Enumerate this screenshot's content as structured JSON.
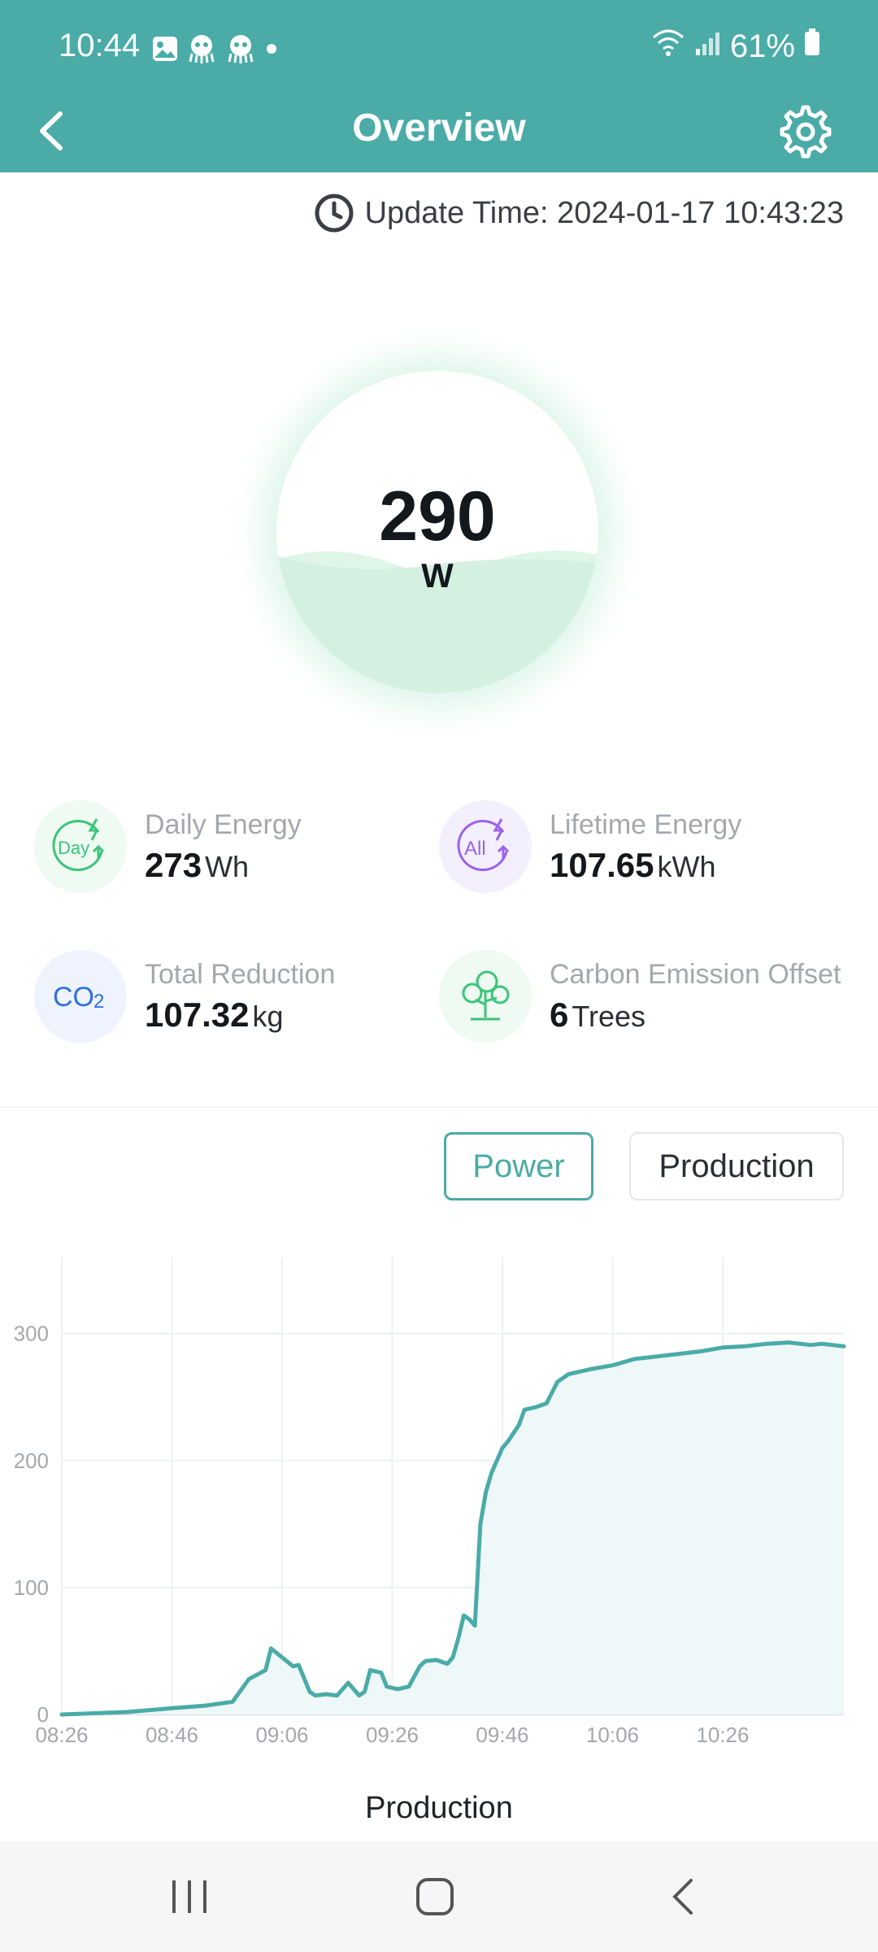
{
  "status_bar": {
    "time": "10:44",
    "battery": "61%",
    "notification_icons": [
      "gallery-icon",
      "octopus-icon",
      "octopus-icon",
      "dot-icon"
    ]
  },
  "app_bar": {
    "title": "Overview",
    "back_icon": "chevron-left-icon",
    "settings_icon": "gear-icon"
  },
  "update_time": {
    "label": "Update Time: 2024-01-17 10:43:23",
    "icon": "clock-icon"
  },
  "power": {
    "value": "290",
    "unit": "W"
  },
  "stats": [
    {
      "label": "Daily Energy",
      "value": "273",
      "unit": "Wh",
      "icon": "day-energy-icon",
      "color": "#3cc47a"
    },
    {
      "label": "Lifetime Energy",
      "value": "107.65",
      "unit": "kWh",
      "icon": "all-energy-icon",
      "color": "#9a62e8"
    },
    {
      "label": "Total Reduction",
      "value": "107.32",
      "unit": "kg",
      "icon": "co2-icon",
      "color": "#2f6fe0"
    },
    {
      "label": "Carbon Emission Offset",
      "value": "6",
      "unit": "Trees",
      "icon": "tree-icon",
      "color": "#3cc47a"
    }
  ],
  "toggle": {
    "power_label": "Power",
    "production_label": "Production",
    "active": "Power"
  },
  "colors": {
    "accent": "#4aaba7",
    "line": "#4aaba7"
  },
  "chart_data": {
    "type": "area",
    "title": "",
    "xlabel": "",
    "ylabel": "",
    "ylim": [
      0,
      360
    ],
    "xlim": [
      "08:26",
      "10:48"
    ],
    "y_ticks": [
      "0",
      "100",
      "200",
      "300"
    ],
    "x_ticks": [
      "08:26",
      "08:46",
      "09:06",
      "09:26",
      "09:46",
      "10:06",
      "10:26"
    ],
    "grid": true,
    "series": [
      {
        "x": [
          "08:26",
          "08:38",
          "08:46",
          "08:52",
          "08:57",
          "09:00",
          "09:03",
          "09:04",
          "09:06",
          "09:08",
          "09:09",
          "09:11",
          "09:12",
          "09:14",
          "09:16",
          "09:18",
          "09:19",
          "09:20",
          "09:21",
          "09:22",
          "09:24",
          "09:25",
          "09:27",
          "09:29",
          "09:31",
          "09:32",
          "09:34",
          "09:36",
          "09:37",
          "09:38",
          "09:39",
          "09:40",
          "09:41",
          "09:42",
          "09:43",
          "09:44",
          "09:46",
          "09:47",
          "09:49",
          "09:50",
          "09:52",
          "09:54",
          "09:56",
          "09:58",
          "10:02",
          "10:06",
          "10:10",
          "10:14",
          "10:18",
          "10:22",
          "10:26",
          "10:30",
          "10:34",
          "10:38",
          "10:42",
          "10:44",
          "10:48"
        ],
        "values": [
          0,
          2,
          5,
          7,
          10,
          28,
          35,
          52,
          45,
          38,
          39,
          18,
          15,
          16,
          15,
          25,
          20,
          15,
          18,
          35,
          33,
          22,
          20,
          22,
          38,
          42,
          43,
          40,
          45,
          60,
          78,
          75,
          70,
          150,
          175,
          190,
          210,
          215,
          228,
          240,
          242,
          245,
          262,
          268,
          272,
          275,
          280,
          282,
          284,
          286,
          289,
          290,
          292,
          293,
          291,
          292,
          290
        ]
      }
    ]
  },
  "chart_caption": "Production",
  "nav_bar": {
    "recents_icon": "recents-icon",
    "home_icon": "home-icon",
    "back_icon": "back-nav-icon"
  }
}
